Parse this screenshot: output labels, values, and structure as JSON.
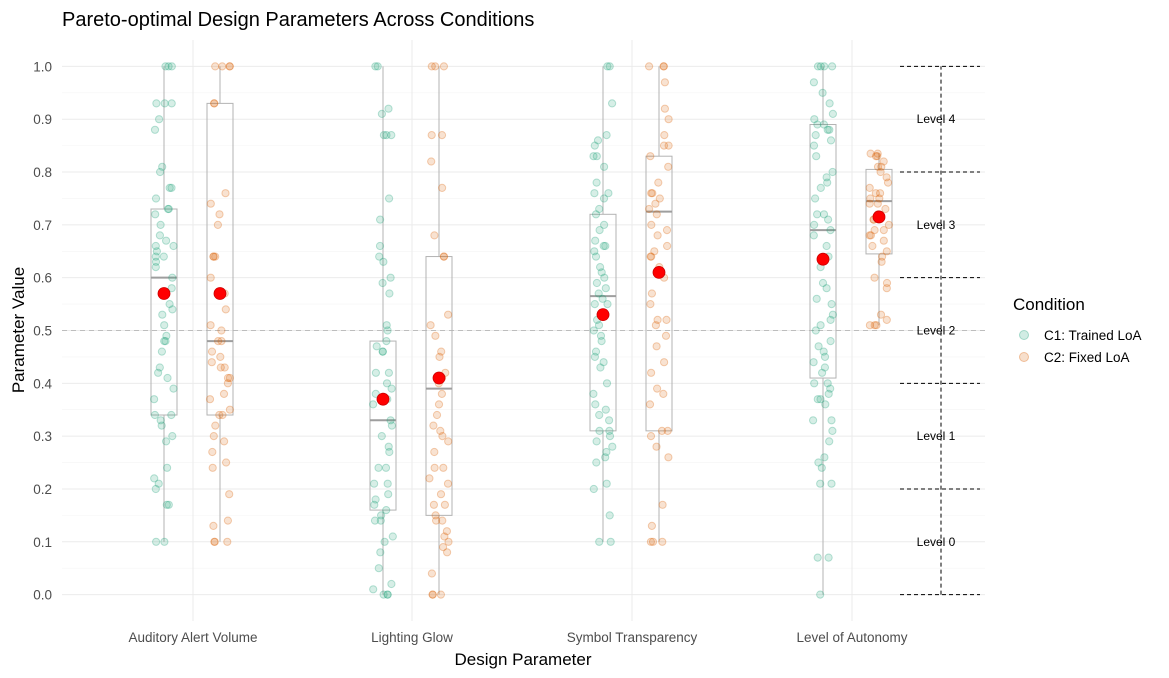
{
  "chart_data": {
    "type": "box+jitter",
    "title": "Pareto-optimal Design Parameters Across Conditions",
    "xlabel": "Design Parameter",
    "ylabel": "Parameter Value",
    "ylim": [
      -0.05,
      1.05
    ],
    "yticks": [
      "0.0",
      "0.1",
      "0.2",
      "0.3",
      "0.4",
      "0.5",
      "0.6",
      "0.7",
      "0.8",
      "0.9",
      "1.0"
    ],
    "categories": [
      "Auditory Alert Volume",
      "Lighting Glow",
      "Symbol Transparency",
      "Level of Autonomy"
    ],
    "reference_line": 0.5,
    "legend": {
      "title": "Condition",
      "position": "right",
      "entries": [
        {
          "label": "C1: Trained LoA",
          "color": "#1b9e77"
        },
        {
          "label": "C2: Fixed LoA",
          "color": "#d95f02"
        }
      ]
    },
    "mean_marker_color": "#ff0000",
    "series": [
      {
        "name": "C1: Trained LoA",
        "boxes": [
          {
            "whisker_low": 0.1,
            "q1": 0.34,
            "median": 0.6,
            "q3": 0.73,
            "whisker_high": 1.0,
            "mean": 0.57
          },
          {
            "whisker_low": 0.0,
            "q1": 0.16,
            "median": 0.33,
            "q3": 0.48,
            "whisker_high": 1.0,
            "mean": 0.37
          },
          {
            "whisker_low": 0.1,
            "q1": 0.31,
            "median": 0.565,
            "q3": 0.72,
            "whisker_high": 1.0,
            "mean": 0.53
          },
          {
            "whisker_low": 0.0,
            "q1": 0.41,
            "median": 0.69,
            "q3": 0.89,
            "whisker_high": 1.0,
            "mean": 0.635
          }
        ],
        "points": [
          [
            1.0,
            1.0,
            1.0,
            0.93,
            0.93,
            0.93,
            0.9,
            0.88,
            0.81,
            0.8,
            0.77,
            0.77,
            0.75,
            0.73,
            0.73,
            0.72,
            0.7,
            0.68,
            0.67,
            0.66,
            0.66,
            0.65,
            0.64,
            0.64,
            0.63,
            0.62,
            0.6,
            0.58,
            0.57,
            0.55,
            0.54,
            0.53,
            0.51,
            0.49,
            0.48,
            0.48,
            0.46,
            0.43,
            0.42,
            0.41,
            0.39,
            0.37,
            0.34,
            0.34,
            0.33,
            0.32,
            0.3,
            0.29,
            0.24,
            0.22,
            0.21,
            0.2,
            0.17,
            0.17,
            0.1,
            0.1
          ],
          [
            1.0,
            1.0,
            0.92,
            0.91,
            0.87,
            0.87,
            0.87,
            0.75,
            0.71,
            0.66,
            0.64,
            0.63,
            0.6,
            0.59,
            0.57,
            0.51,
            0.5,
            0.48,
            0.47,
            0.46,
            0.46,
            0.42,
            0.42,
            0.4,
            0.39,
            0.38,
            0.37,
            0.36,
            0.33,
            0.32,
            0.3,
            0.28,
            0.27,
            0.24,
            0.24,
            0.21,
            0.21,
            0.19,
            0.18,
            0.17,
            0.16,
            0.15,
            0.14,
            0.14,
            0.11,
            0.1,
            0.08,
            0.05,
            0.02,
            0.01,
            0.0,
            0.0,
            0.0
          ],
          [
            1.0,
            1.0,
            0.93,
            0.87,
            0.86,
            0.85,
            0.83,
            0.83,
            0.81,
            0.78,
            0.76,
            0.76,
            0.75,
            0.73,
            0.72,
            0.7,
            0.69,
            0.67,
            0.66,
            0.66,
            0.65,
            0.64,
            0.62,
            0.61,
            0.6,
            0.59,
            0.58,
            0.57,
            0.56,
            0.55,
            0.55,
            0.53,
            0.52,
            0.51,
            0.5,
            0.49,
            0.48,
            0.46,
            0.45,
            0.44,
            0.43,
            0.4,
            0.38,
            0.36,
            0.35,
            0.34,
            0.33,
            0.31,
            0.31,
            0.3,
            0.29,
            0.28,
            0.27,
            0.26,
            0.25,
            0.21,
            0.2,
            0.15,
            0.1,
            0.1
          ],
          [
            1.0,
            1.0,
            1.0,
            1.0,
            0.97,
            0.95,
            0.93,
            0.91,
            0.9,
            0.89,
            0.89,
            0.88,
            0.88,
            0.87,
            0.86,
            0.85,
            0.83,
            0.8,
            0.79,
            0.78,
            0.77,
            0.75,
            0.72,
            0.72,
            0.71,
            0.7,
            0.69,
            0.68,
            0.66,
            0.64,
            0.62,
            0.59,
            0.58,
            0.56,
            0.55,
            0.53,
            0.52,
            0.51,
            0.5,
            0.48,
            0.47,
            0.46,
            0.45,
            0.44,
            0.43,
            0.42,
            0.4,
            0.4,
            0.39,
            0.38,
            0.37,
            0.37,
            0.36,
            0.33,
            0.33,
            0.31,
            0.29,
            0.26,
            0.25,
            0.24,
            0.21,
            0.21,
            0.07,
            0.07,
            0.0
          ]
        ]
      },
      {
        "name": "C2: Fixed LoA",
        "boxes": [
          {
            "whisker_low": 0.1,
            "q1": 0.34,
            "median": 0.48,
            "q3": 0.93,
            "whisker_high": 1.0,
            "mean": 0.57
          },
          {
            "whisker_low": 0.0,
            "q1": 0.15,
            "median": 0.39,
            "q3": 0.64,
            "whisker_high": 1.0,
            "mean": 0.41
          },
          {
            "whisker_low": 0.1,
            "q1": 0.31,
            "median": 0.725,
            "q3": 0.83,
            "whisker_high": 1.0,
            "mean": 0.61
          },
          {
            "whisker_low": 0.51,
            "q1": 0.645,
            "median": 0.745,
            "q3": 0.805,
            "whisker_high": 0.835,
            "mean": 0.715
          }
        ],
        "points": [
          [
            1.0,
            1.0,
            1.0,
            1.0,
            0.93,
            0.93,
            0.76,
            0.74,
            0.72,
            0.7,
            0.64,
            0.64,
            0.64,
            0.6,
            0.57,
            0.54,
            0.51,
            0.5,
            0.48,
            0.48,
            0.46,
            0.45,
            0.44,
            0.43,
            0.43,
            0.41,
            0.41,
            0.4,
            0.38,
            0.37,
            0.35,
            0.34,
            0.34,
            0.32,
            0.3,
            0.29,
            0.27,
            0.25,
            0.24,
            0.19,
            0.14,
            0.13,
            0.1,
            0.1,
            0.1
          ],
          [
            1.0,
            1.0,
            1.0,
            0.87,
            0.87,
            0.82,
            0.77,
            0.68,
            0.64,
            0.64,
            0.53,
            0.51,
            0.49,
            0.46,
            0.45,
            0.42,
            0.41,
            0.4,
            0.38,
            0.36,
            0.34,
            0.32,
            0.31,
            0.3,
            0.29,
            0.27,
            0.24,
            0.24,
            0.22,
            0.21,
            0.19,
            0.17,
            0.17,
            0.15,
            0.14,
            0.14,
            0.12,
            0.11,
            0.1,
            0.09,
            0.08,
            0.04,
            0.0,
            0.0,
            0.0
          ],
          [
            1.0,
            1.0,
            1.0,
            0.97,
            0.92,
            0.9,
            0.87,
            0.85,
            0.85,
            0.83,
            0.81,
            0.78,
            0.76,
            0.76,
            0.75,
            0.74,
            0.73,
            0.72,
            0.7,
            0.69,
            0.68,
            0.66,
            0.65,
            0.64,
            0.64,
            0.62,
            0.6,
            0.57,
            0.55,
            0.52,
            0.52,
            0.51,
            0.49,
            0.47,
            0.44,
            0.42,
            0.39,
            0.38,
            0.36,
            0.31,
            0.31,
            0.3,
            0.28,
            0.26,
            0.17,
            0.13,
            0.1,
            0.1,
            0.1
          ],
          [
            0.835,
            0.835,
            0.83,
            0.83,
            0.82,
            0.81,
            0.81,
            0.8,
            0.79,
            0.78,
            0.77,
            0.76,
            0.76,
            0.75,
            0.75,
            0.74,
            0.74,
            0.73,
            0.72,
            0.71,
            0.71,
            0.7,
            0.69,
            0.69,
            0.68,
            0.68,
            0.67,
            0.66,
            0.65,
            0.64,
            0.63,
            0.6,
            0.59,
            0.58,
            0.53,
            0.52,
            0.51,
            0.51,
            0.51
          ]
        ]
      }
    ],
    "level_bands": [
      {
        "label": "Level 0",
        "from": 0.0,
        "to": 0.2
      },
      {
        "label": "Level 1",
        "from": 0.2,
        "to": 0.4
      },
      {
        "label": "Level 2",
        "from": 0.4,
        "to": 0.6
      },
      {
        "label": "Level 3",
        "from": 0.6,
        "to": 0.8
      },
      {
        "label": "Level 4",
        "from": 0.8,
        "to": 1.0
      }
    ]
  }
}
